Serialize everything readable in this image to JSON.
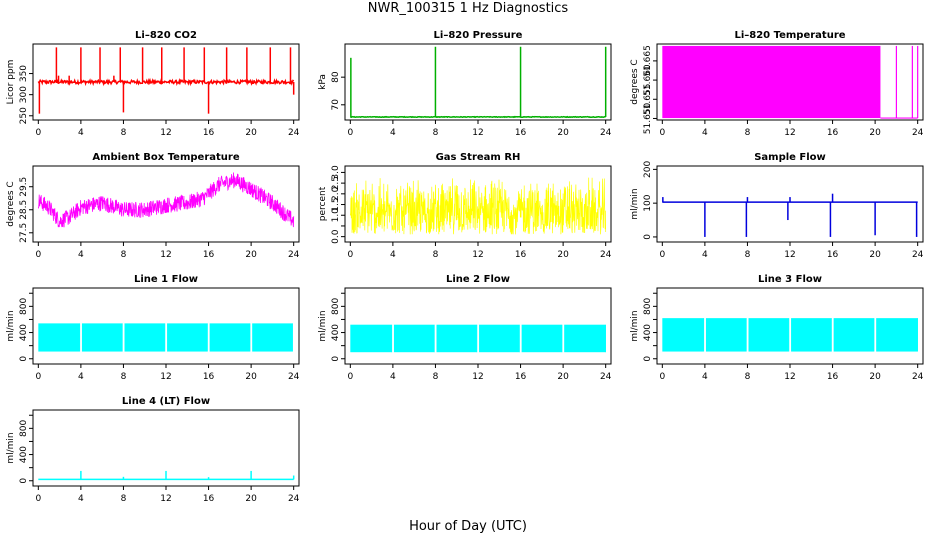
{
  "page": {
    "title": "NWR_100315  1 Hz Diagnostics",
    "xlabel": "Hour of Day (UTC)"
  },
  "chart_data": [
    {
      "type": "line",
      "title": "Li–820 CO2",
      "ylabel": "Licor ppm",
      "color": "#ff0000",
      "xlim": [
        -0.5,
        24.5
      ],
      "ylim": [
        240,
        420
      ],
      "yticks": [
        250,
        300,
        350
      ],
      "xticks": [
        0,
        4,
        8,
        12,
        16,
        20,
        24
      ],
      "baseline": 330,
      "noise": 4,
      "spikes": [
        [
          1.7,
          412
        ],
        [
          2.9,
          345
        ],
        [
          4.0,
          412
        ],
        [
          5.8,
          412
        ],
        [
          7.7,
          412
        ],
        [
          8.0,
          258
        ],
        [
          9.8,
          412
        ],
        [
          11.6,
          412
        ],
        [
          13.7,
          412
        ],
        [
          15.6,
          412
        ],
        [
          16.0,
          255
        ],
        [
          17.7,
          412
        ],
        [
          19.6,
          412
        ],
        [
          21.8,
          412
        ],
        [
          23.7,
          412
        ],
        [
          24.0,
          300
        ],
        [
          0.1,
          255
        ],
        [
          1.9,
          345
        ],
        [
          7.1,
          345
        ]
      ]
    },
    {
      "type": "line",
      "title": "Li–820 Pressure",
      "ylabel": "kPa",
      "color": "#00b000",
      "xlim": [
        -0.5,
        24.5
      ],
      "ylim": [
        64.5,
        92
      ],
      "yticks": [
        70,
        80
      ],
      "xticks": [
        0,
        4,
        8,
        12,
        16,
        20,
        24
      ],
      "baseline": 65.6,
      "noise": 0.1,
      "spikes": [
        [
          0.05,
          87
        ],
        [
          8.0,
          91
        ],
        [
          16.0,
          91
        ],
        [
          24.0,
          91
        ]
      ]
    },
    {
      "type": "area",
      "title": "Li–820 Temperature",
      "ylabel": "degrees C",
      "color": "#ff00ff",
      "xlim": [
        -0.5,
        24.5
      ],
      "ylim": [
        51.6496,
        51.6694
      ],
      "yticks": [
        51.65,
        51.655,
        51.66,
        51.665
      ],
      "ytick_labels": [
        "51.650",
        "51.655",
        "51.660",
        "51.665"
      ],
      "xticks": [
        0,
        4,
        8,
        12,
        16,
        20,
        24
      ],
      "filled_until": 20.5,
      "low": 51.6501,
      "high": 51.6689,
      "verticals": [
        22.0,
        23.5,
        24.0
      ]
    },
    {
      "type": "line",
      "title": "Ambient Box Temperature",
      "ylabel": "degrees C",
      "color": "#ff00ff",
      "xlim": [
        -0.5,
        24.5
      ],
      "ylim": [
        27.1,
        30.4
      ],
      "yticks": [
        27.5,
        28.5,
        29.5
      ],
      "xticks": [
        0,
        4,
        8,
        12,
        16,
        20,
        24
      ],
      "mean_profile": [
        [
          0,
          28.9
        ],
        [
          1,
          28.6
        ],
        [
          2,
          28.0
        ],
        [
          3,
          28.2
        ],
        [
          4,
          28.6
        ],
        [
          6,
          28.8
        ],
        [
          8,
          28.5
        ],
        [
          10,
          28.5
        ],
        [
          12,
          28.7
        ],
        [
          14,
          28.8
        ],
        [
          15.5,
          29.0
        ],
        [
          17,
          29.6
        ],
        [
          18.5,
          29.8
        ],
        [
          20,
          29.4
        ],
        [
          22,
          28.8
        ],
        [
          24,
          28.0
        ]
      ],
      "noise": 0.7
    },
    {
      "type": "line",
      "title": "Gas Stream RH",
      "ylabel": "percent",
      "color": "#ffff00",
      "xlim": [
        -0.5,
        24.5
      ],
      "ylim": [
        -0.25,
        3.3
      ],
      "yticks": [
        0.0,
        0.5,
        1.0,
        1.5,
        2.0,
        2.5,
        3.0
      ],
      "ytick_labels": [
        "0.0",
        "",
        "1.0",
        "1.5",
        "2.0",
        "2.5",
        "3.0"
      ],
      "xticks": [
        0,
        4,
        8,
        12,
        16,
        20,
        24
      ],
      "band": [
        0.1,
        2.9
      ],
      "mean": 1.4
    },
    {
      "type": "line",
      "title": "Sample Flow",
      "ylabel": "ml/min",
      "color": "#0000dd",
      "xlim": [
        -0.5,
        24.5
      ],
      "ylim": [
        -15,
        210
      ],
      "yticks": [
        0,
        100,
        200
      ],
      "xticks": [
        0,
        4,
        8,
        12,
        16,
        20,
        24
      ],
      "baseline": 103,
      "spikes": [
        [
          0.05,
          118
        ],
        [
          4.0,
          0
        ],
        [
          7.9,
          0
        ],
        [
          8.0,
          118
        ],
        [
          11.8,
          50
        ],
        [
          12.0,
          118
        ],
        [
          15.8,
          0
        ],
        [
          16.0,
          128
        ],
        [
          20.0,
          5
        ],
        [
          23.9,
          0
        ]
      ]
    },
    {
      "type": "line",
      "title": "Line 1 Flow",
      "ylabel": "ml/min",
      "color": "#00ffff",
      "xlim": [
        -0.5,
        24.5
      ],
      "ylim": [
        -80,
        1080
      ],
      "yticks": [
        0,
        200,
        400,
        600,
        800,
        1000
      ],
      "ytick_labels": [
        "0",
        "",
        "400",
        "",
        "800",
        ""
      ],
      "xticks": [
        0,
        4,
        8,
        12,
        16,
        20,
        24
      ],
      "band": [
        110,
        540
      ],
      "segments": [
        [
          0,
          3.9
        ],
        [
          4.1,
          7.9
        ],
        [
          8.1,
          11.9
        ],
        [
          12.1,
          15.9
        ],
        [
          16.1,
          19.9
        ],
        [
          20.1,
          23.9
        ]
      ]
    },
    {
      "type": "line",
      "title": "Line 2 Flow",
      "ylabel": "ml/min",
      "color": "#00ffff",
      "xlim": [
        -0.5,
        24.5
      ],
      "ylim": [
        -80,
        1080
      ],
      "yticks": [
        0,
        200,
        400,
        600,
        800,
        1000
      ],
      "ytick_labels": [
        "0",
        "",
        "400",
        "",
        "800",
        ""
      ],
      "xticks": [
        0,
        4,
        8,
        12,
        16,
        20,
        24
      ],
      "band": [
        100,
        520
      ],
      "segments": [
        [
          0,
          3.9
        ],
        [
          4.1,
          7.9
        ],
        [
          8.1,
          11.9
        ],
        [
          12.1,
          15.9
        ],
        [
          16.1,
          19.9
        ],
        [
          20.1,
          24.0
        ]
      ]
    },
    {
      "type": "line",
      "title": "Line 3 Flow",
      "ylabel": "ml/min",
      "color": "#00ffff",
      "xlim": [
        -0.5,
        24.5
      ],
      "ylim": [
        -80,
        1080
      ],
      "yticks": [
        0,
        200,
        400,
        600,
        800,
        1000
      ],
      "ytick_labels": [
        "0",
        "",
        "400",
        "",
        "800",
        ""
      ],
      "xticks": [
        0,
        4,
        8,
        12,
        16,
        20,
        24
      ],
      "band": [
        110,
        620
      ],
      "segments": [
        [
          0,
          3.9
        ],
        [
          4.1,
          7.9
        ],
        [
          8.1,
          11.9
        ],
        [
          12.1,
          15.9
        ],
        [
          16.1,
          19.9
        ],
        [
          20.1,
          24.0
        ]
      ]
    },
    {
      "type": "line",
      "title": "Line 4 (LT) Flow",
      "ylabel": "ml/min",
      "color": "#00ffff",
      "xlim": [
        -0.5,
        24.5
      ],
      "ylim": [
        -80,
        1080
      ],
      "yticks": [
        0,
        200,
        400,
        600,
        800,
        1000
      ],
      "ytick_labels": [
        "0",
        "",
        "400",
        "",
        "800",
        ""
      ],
      "xticks": [
        0,
        4,
        8,
        12,
        16,
        20,
        24
      ],
      "baseline": 20,
      "spikes": [
        [
          4.0,
          150
        ],
        [
          8.0,
          60
        ],
        [
          12.0,
          150
        ],
        [
          16.0,
          55
        ],
        [
          20.0,
          150
        ],
        [
          24.0,
          80
        ]
      ]
    }
  ]
}
